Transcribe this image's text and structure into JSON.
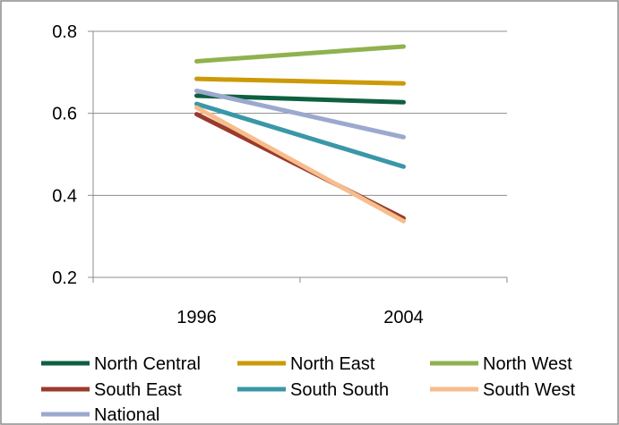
{
  "chart_data": {
    "type": "line",
    "title": "",
    "xlabel": "",
    "ylabel": "",
    "x": [
      "1996",
      "2004"
    ],
    "ylim": [
      0.2,
      0.8
    ],
    "yticks": [
      "0.2",
      "0.4",
      "0.6",
      "0.8"
    ],
    "grid": true,
    "legend_position": "bottom",
    "series": [
      {
        "name": "North Central",
        "color": "#0e6040",
        "values": [
          0.643,
          0.627
        ]
      },
      {
        "name": "North East",
        "color": "#cc9a06",
        "values": [
          0.684,
          0.673
        ]
      },
      {
        "name": "North West",
        "color": "#8fb24e",
        "values": [
          0.727,
          0.763
        ]
      },
      {
        "name": "South East",
        "color": "#9b3a2c",
        "values": [
          0.598,
          0.344
        ]
      },
      {
        "name": "South South",
        "color": "#3a97a8",
        "values": [
          0.623,
          0.47
        ]
      },
      {
        "name": "South West",
        "color": "#f7bd8d",
        "values": [
          0.614,
          0.337
        ]
      },
      {
        "name": "National",
        "color": "#9ba9cf",
        "values": [
          0.655,
          0.542
        ]
      }
    ]
  }
}
